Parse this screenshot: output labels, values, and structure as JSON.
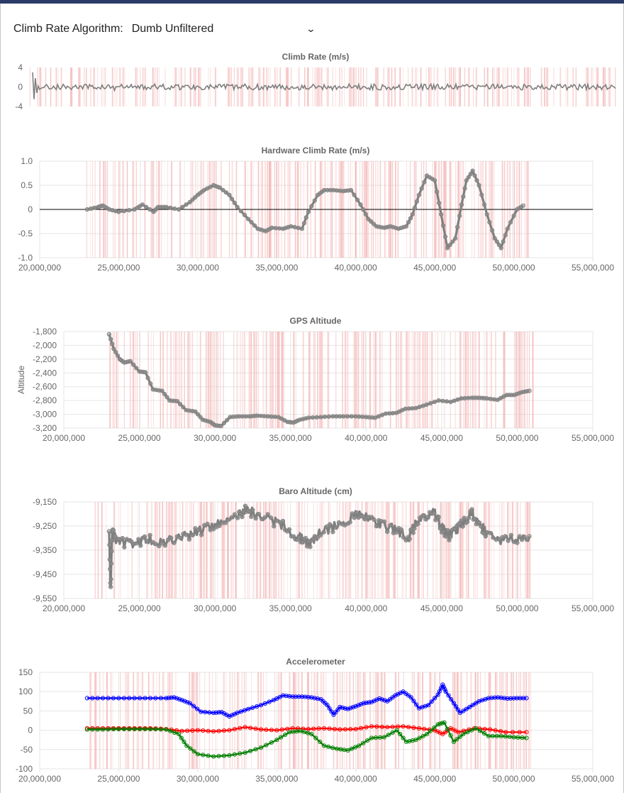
{
  "header": {
    "algorithm_label": "Climb Rate Algorithm:",
    "algorithm_value": "Dumb Unfiltered"
  },
  "colors": {
    "bar": "#f4b8b8",
    "line": "#7f7f7f",
    "grid": "#e6e6e6",
    "series_blue": "#0000ff",
    "series_red": "#ff0000",
    "series_green": "#008000"
  },
  "chart_data": [
    {
      "id": "climb",
      "type": "line",
      "title": "Climb Rate (m/s)",
      "ylabel": "",
      "ylim": [
        -4,
        4
      ],
      "yticks": [
        "4",
        "0",
        "-4"
      ],
      "x_axis_shown": false,
      "markers": false,
      "description_values": "dense noise around 0 with spikes near the start",
      "series": [
        {
          "values_peak_start": [
            3,
            -2.5,
            1.8,
            -1.2
          ],
          "values_range": [
            -0.6,
            0.6
          ]
        }
      ]
    },
    {
      "id": "hw",
      "type": "line",
      "title": "Hardware Climb Rate (m/s)",
      "ylabel": "",
      "ylim": [
        -1.0,
        1.0
      ],
      "yticks": [
        "1.0",
        "0.5",
        "0",
        "-0.5",
        "-1.0"
      ],
      "xlim": [
        20000000,
        55000000
      ],
      "xticks": [
        "20,000,000",
        "25,000,000",
        "30,000,000",
        "35,000,000",
        "40,000,000",
        "45,000,000",
        "50,000,000",
        "55,000,000"
      ],
      "zero_line": true,
      "markers": true,
      "series": [
        {
          "x": [
            23000000,
            23700000,
            24000000,
            24400000,
            25000000,
            26000000,
            26500000,
            27200000,
            27500000,
            28000000,
            28800000,
            29500000,
            30000000,
            30400000,
            31000000,
            31400000,
            32000000,
            32500000,
            33200000,
            33800000,
            34300000,
            34700000,
            35400000,
            35900000,
            36600000,
            37000000,
            37600000,
            38000000,
            38600000,
            39200000,
            39700000,
            40300000,
            40800000,
            41300000,
            41800000,
            42200000,
            42700000,
            43200000,
            43600000,
            44000000,
            44500000,
            45000000,
            45400000,
            45800000,
            46300000,
            46700000,
            47000000,
            47400000,
            47800000,
            48300000,
            48800000,
            49200000,
            49600000,
            50200000,
            50600000
          ],
          "values": [
            0,
            0.05,
            0.08,
            0,
            -0.05,
            0,
            0.1,
            -0.05,
            0.05,
            0.05,
            0,
            0.15,
            0.3,
            0.4,
            0.5,
            0.45,
            0.3,
            0.05,
            -0.2,
            -0.4,
            -0.45,
            -0.38,
            -0.4,
            -0.35,
            -0.4,
            -0.05,
            0.3,
            0.4,
            0.4,
            0.38,
            0.4,
            0.1,
            -0.2,
            -0.35,
            -0.38,
            -0.35,
            -0.4,
            -0.35,
            -0.1,
            0.3,
            0.7,
            0.6,
            -0.1,
            -0.8,
            -0.6,
            0.1,
            0.6,
            0.8,
            0.5,
            -0.1,
            -0.6,
            -0.8,
            -0.4,
            0,
            0.08
          ]
        }
      ]
    },
    {
      "id": "gps",
      "type": "line",
      "title": "GPS Altitude",
      "ylabel": "Altitude",
      "ylim": [
        -3200,
        -1800
      ],
      "yticks": [
        "-1,800",
        "-2,000",
        "-2,200",
        "-2,400",
        "-2,600",
        "-2,800",
        "-3,000",
        "-3,200"
      ],
      "xlim": [
        20000000,
        55000000
      ],
      "xticks": [
        "20,000,000",
        "25,000,000",
        "30,000,000",
        "35,000,000",
        "40,000,000",
        "45,000,000",
        "50,000,000",
        "55,000,000"
      ],
      "markers": true,
      "series": [
        {
          "x": [
            23000000,
            23300000,
            23700000,
            24000000,
            24400000,
            25000000,
            25400000,
            25900000,
            26500000,
            27000000,
            27500000,
            28100000,
            28700000,
            29200000,
            29700000,
            30000000,
            30400000,
            31000000,
            31600000,
            32300000,
            32800000,
            33500000,
            34200000,
            34800000,
            35200000,
            35600000,
            36200000,
            37000000,
            37800000,
            38500000,
            39300000,
            40000000,
            40600000,
            41300000,
            42000000,
            42600000,
            43300000,
            44000000,
            44800000,
            45600000,
            46300000,
            47000000,
            47500000,
            48000000,
            48700000,
            49300000,
            49800000,
            50300000,
            50800000
          ],
          "values": [
            -1840,
            -2050,
            -2200,
            -2250,
            -2230,
            -2380,
            -2390,
            -2640,
            -2660,
            -2800,
            -2810,
            -2940,
            -2960,
            -3080,
            -3110,
            -3160,
            -3170,
            -3040,
            -3030,
            -3030,
            -3020,
            -3030,
            -3040,
            -3110,
            -3120,
            -3080,
            -3050,
            -3040,
            -3030,
            -3030,
            -3030,
            -3040,
            -3050,
            -2990,
            -2980,
            -2920,
            -2910,
            -2860,
            -2800,
            -2820,
            -2770,
            -2760,
            -2760,
            -2770,
            -2790,
            -2720,
            -2720,
            -2680,
            -2660
          ]
        }
      ]
    },
    {
      "id": "baro",
      "type": "line",
      "title": "Baro Altitude (cm)",
      "ylabel": "",
      "ylim": [
        -9550,
        -9100
      ],
      "yticks": [
        "-9,150",
        "-9,250",
        "-9,350",
        "-9,450",
        "-9,550"
      ],
      "xlim": [
        20000000,
        55000000
      ],
      "xticks": [
        "20,000,000",
        "25,000,000",
        "30,000,000",
        "35,000,000",
        "40,000,000",
        "45,000,000",
        "50,000,000",
        "55,000,000"
      ],
      "markers": true,
      "series": [
        {
          "x": [
            23000000,
            23100000,
            23200000,
            23400000,
            24000000,
            24800000,
            25500000,
            26500000,
            27500000,
            28500000,
            29500000,
            30500000,
            31500000,
            32000000,
            32500000,
            33500000,
            34500000,
            35200000,
            35800000,
            36300000,
            36800000,
            37800000,
            38800000,
            39500000,
            40200000,
            41000000,
            42000000,
            42800000,
            43200000,
            43800000,
            44500000,
            45000000,
            45500000,
            46000000,
            46500000,
            47000000,
            47500000,
            48000000,
            49000000,
            50000000,
            50800000
          ],
          "values": [
            -9260,
            -9510,
            -9240,
            -9270,
            -9290,
            -9300,
            -9270,
            -9290,
            -9270,
            -9250,
            -9220,
            -9190,
            -9160,
            -9140,
            -9150,
            -9180,
            -9210,
            -9250,
            -9270,
            -9300,
            -9250,
            -9220,
            -9180,
            -9150,
            -9170,
            -9210,
            -9230,
            -9270,
            -9210,
            -9170,
            -9150,
            -9220,
            -9260,
            -9230,
            -9190,
            -9150,
            -9200,
            -9250,
            -9280,
            -9270,
            -9260
          ]
        }
      ]
    },
    {
      "id": "accel",
      "type": "line",
      "title": "Accelerometer",
      "ylabel": "",
      "ylim": [
        -100,
        150
      ],
      "yticks": [
        "150",
        "100",
        "50",
        "0",
        "-50",
        "-100"
      ],
      "xlim": [
        20000000,
        55000000
      ],
      "xticks": [
        "20,000,000",
        "25,000,000",
        "30,000,000",
        "35,000,000",
        "40,000,000",
        "45,000,000",
        "50,000,000",
        "55,000,000"
      ],
      "markers": true,
      "series": [
        {
          "color": "blue",
          "x": [
            23000000,
            24000000,
            25000000,
            26000000,
            27000000,
            28000000,
            28500000,
            29000000,
            29500000,
            30200000,
            31000000,
            31500000,
            32000000,
            32500000,
            33200000,
            34000000,
            34800000,
            35400000,
            36000000,
            36600000,
            37200000,
            37800000,
            38200000,
            38600000,
            39000000,
            39500000,
            40000000,
            40500000,
            41000000,
            41500000,
            42000000,
            42500000,
            43000000,
            43500000,
            44000000,
            44600000,
            45200000,
            45500000,
            45700000,
            46200000,
            46600000,
            47200000,
            47800000,
            48400000,
            49000000,
            49600000,
            50200000,
            50800000
          ],
          "values": [
            83,
            83,
            83,
            83,
            83,
            83,
            85,
            78,
            70,
            48,
            45,
            47,
            36,
            45,
            55,
            65,
            78,
            90,
            87,
            87,
            85,
            80,
            65,
            40,
            60,
            55,
            62,
            70,
            73,
            82,
            75,
            90,
            100,
            85,
            57,
            65,
            92,
            118,
            100,
            70,
            45,
            60,
            75,
            83,
            85,
            82,
            83,
            83
          ]
        },
        {
          "color": "red",
          "x": [
            23000000,
            24000000,
            25000000,
            26000000,
            27000000,
            28000000,
            29000000,
            30000000,
            31000000,
            32000000,
            33000000,
            34000000,
            35000000,
            36000000,
            37000000,
            38000000,
            39000000,
            40000000,
            41000000,
            42000000,
            43000000,
            44000000,
            45000000,
            45500000,
            46000000,
            46500000,
            47500000,
            48500000,
            49500000,
            50800000
          ],
          "values": [
            5,
            5,
            5,
            5,
            5,
            3,
            -2,
            0,
            -3,
            0,
            8,
            2,
            0,
            5,
            3,
            5,
            2,
            3,
            10,
            8,
            10,
            5,
            0,
            -10,
            5,
            -5,
            5,
            2,
            -5,
            -5
          ]
        },
        {
          "color": "green",
          "x": [
            23000000,
            24000000,
            25000000,
            26000000,
            27000000,
            28000000,
            28800000,
            29300000,
            30000000,
            31000000,
            32000000,
            33000000,
            34000000,
            35000000,
            35800000,
            36500000,
            37200000,
            38000000,
            38800000,
            39500000,
            40200000,
            41000000,
            41800000,
            42600000,
            43200000,
            43800000,
            44500000,
            45200000,
            45600000,
            46200000,
            46800000,
            47600000,
            48400000,
            49200000,
            50000000,
            50800000
          ],
          "values": [
            2,
            2,
            3,
            3,
            3,
            2,
            -10,
            -40,
            -62,
            -68,
            -65,
            -58,
            -45,
            -25,
            -5,
            -2,
            -10,
            -40,
            -48,
            -52,
            -40,
            -20,
            -18,
            0,
            -30,
            -25,
            -10,
            15,
            20,
            -30,
            -10,
            5,
            -15,
            -15,
            -18,
            -20
          ]
        }
      ]
    }
  ]
}
